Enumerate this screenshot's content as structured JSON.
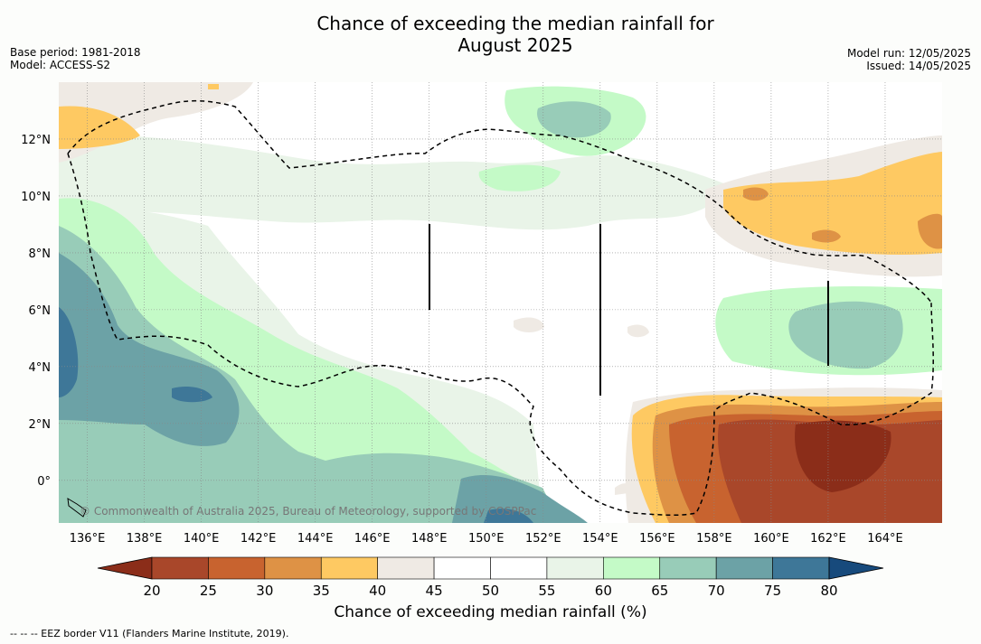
{
  "title": {
    "line1": "Chance of exceeding the median rainfall for",
    "line2": "August 2025"
  },
  "meta": {
    "base_period": "Base period: 1981-2018",
    "model": "Model: ACCESS-S2",
    "model_run": "Model run: 12/05/2025",
    "issued": "Issued: 14/05/2025"
  },
  "map": {
    "lon_ticks": [
      "136°E",
      "138°E",
      "140°E",
      "142°E",
      "144°E",
      "146°E",
      "148°E",
      "150°E",
      "152°E",
      "154°E",
      "156°E",
      "158°E",
      "160°E",
      "162°E",
      "164°E"
    ],
    "lat_ticks": [
      "12°N",
      "10°N",
      "8°N",
      "6°N",
      "4°N",
      "2°N",
      "0°"
    ],
    "lon_range": [
      135,
      166
    ],
    "lat_range": [
      -1.5,
      14
    ],
    "copyright": "© Commonwealth of Australia 2025, Bureau of Meteorology, supported by COSPPac"
  },
  "colorbar": {
    "ticks": [
      "20",
      "25",
      "30",
      "35",
      "40",
      "45",
      "50",
      "55",
      "60",
      "65",
      "70",
      "75",
      "80"
    ],
    "under_color": "#8b2d19",
    "over_color": "#174a7c",
    "colors": [
      "#a9472a",
      "#c8632f",
      "#de9245",
      "#fec962",
      "#efeae4",
      "#ffffff",
      "#ffffff",
      "#e9f4e8",
      "#c4fac7",
      "#98ccb8",
      "#6ca2a6",
      "#3e7798"
    ],
    "label": "Chance of exceeding median rainfall (%)"
  },
  "footer": "-- -- -- EEZ border V11 (Flanders Marine Institute, 2019)."
}
